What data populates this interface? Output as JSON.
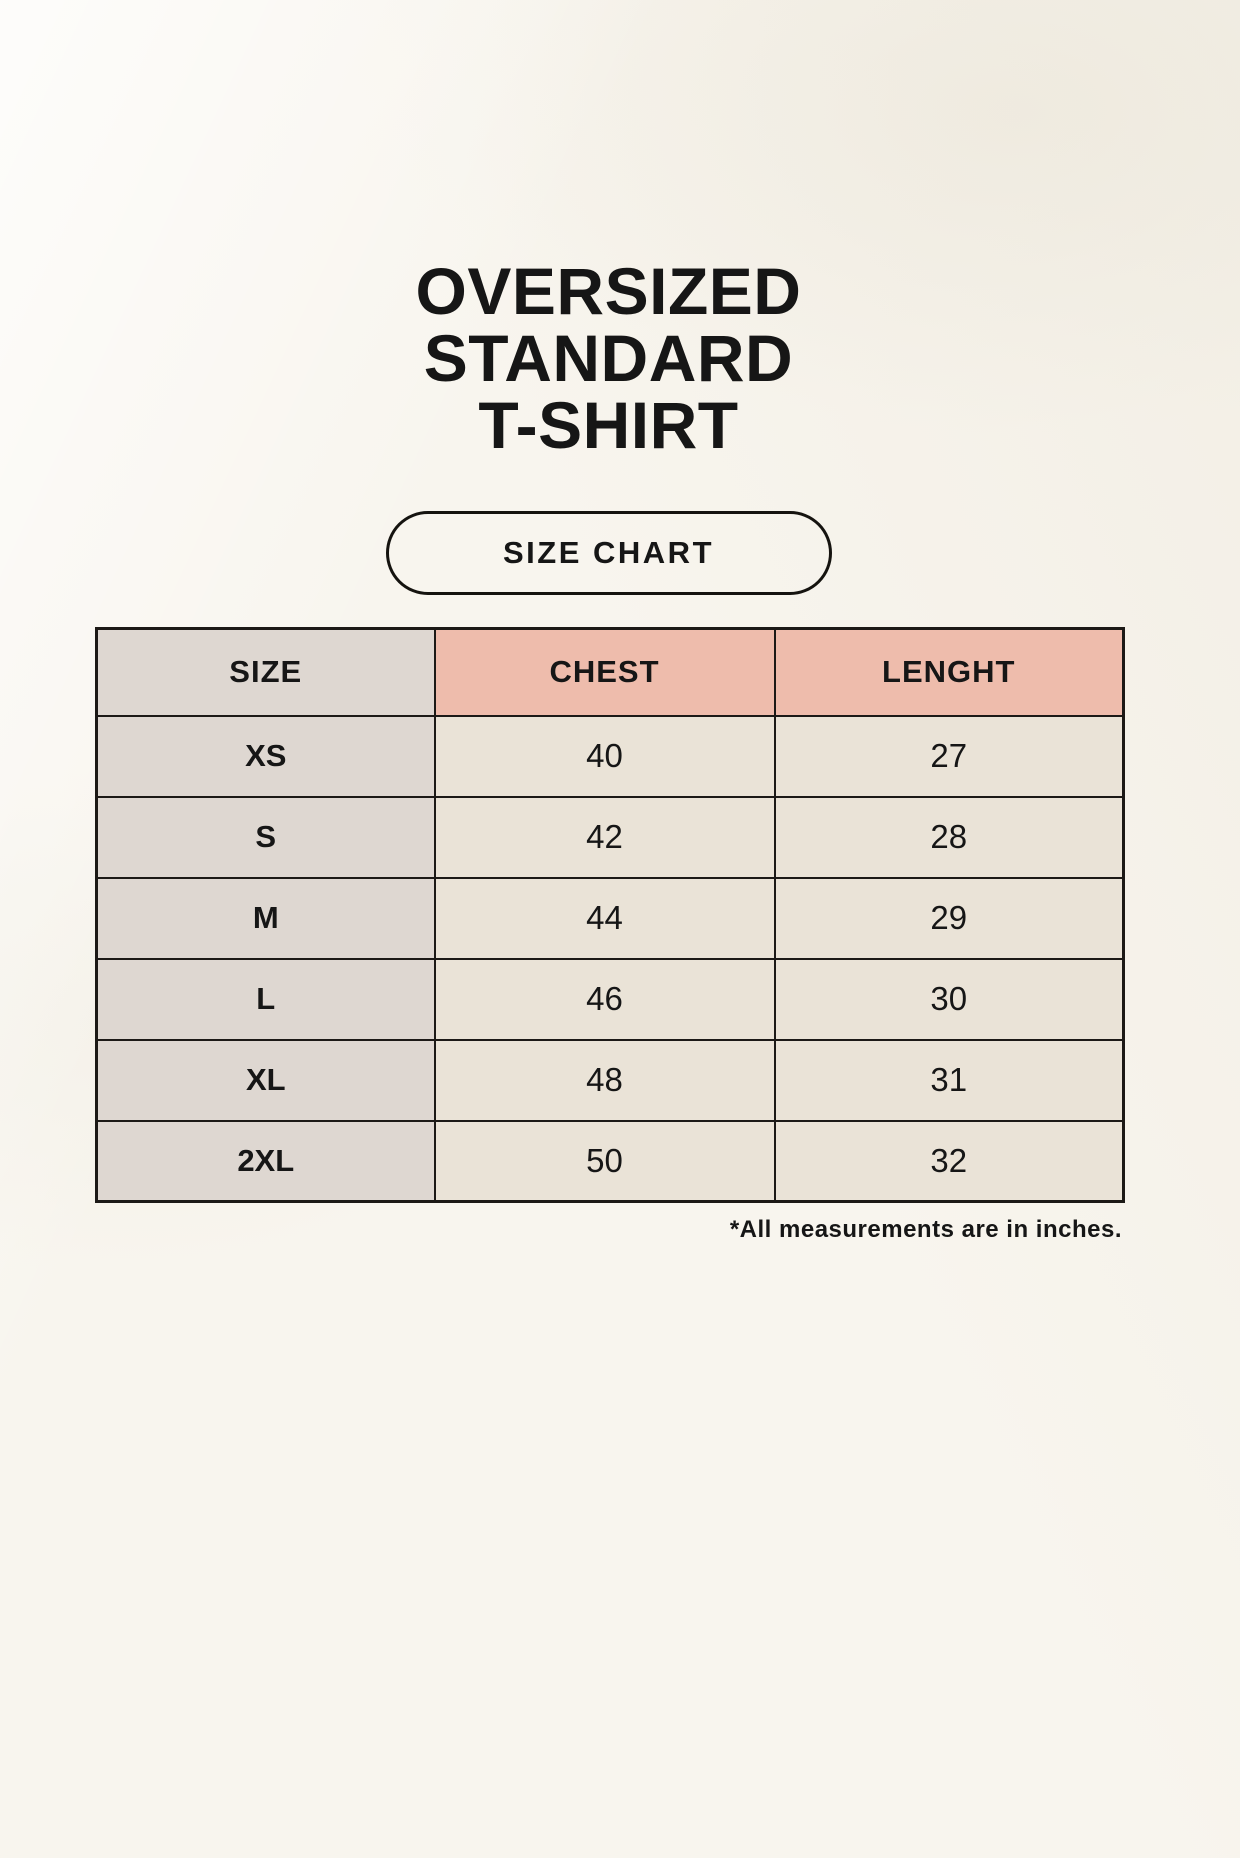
{
  "page": {
    "title_lines": [
      "OVERSIZED",
      "STANDARD",
      "T-SHIRT"
    ],
    "badge_label": "SIZE CHART",
    "footnote": "*All measurements are in inches."
  },
  "colors": {
    "page_background": "#f8f5ee",
    "size_column_background": "#ded7d1",
    "accent_header_background": "#eebcac",
    "data_cell_background": "#eae3d7",
    "table_border": "#1c1916",
    "text": "#161616"
  },
  "chart_data": {
    "type": "table",
    "title": "OVERSIZED STANDARD T-SHIRT",
    "subtitle": "SIZE CHART",
    "columns": [
      "SIZE",
      "CHEST",
      "LENGHT"
    ],
    "rows": [
      [
        "XS",
        "40",
        "27"
      ],
      [
        "S",
        "42",
        "28"
      ],
      [
        "M",
        "44",
        "29"
      ],
      [
        "L",
        "46",
        "30"
      ],
      [
        "XL",
        "48",
        "31"
      ],
      [
        "2XL",
        "50",
        "32"
      ]
    ],
    "note": "*All measurements are in inches.",
    "units": "inches",
    "layout_hints": {
      "row_label_column": "SIZE",
      "accent_header_columns": [
        "CHEST",
        "LENGHT"
      ],
      "grid": "on",
      "alignment": "center"
    }
  }
}
